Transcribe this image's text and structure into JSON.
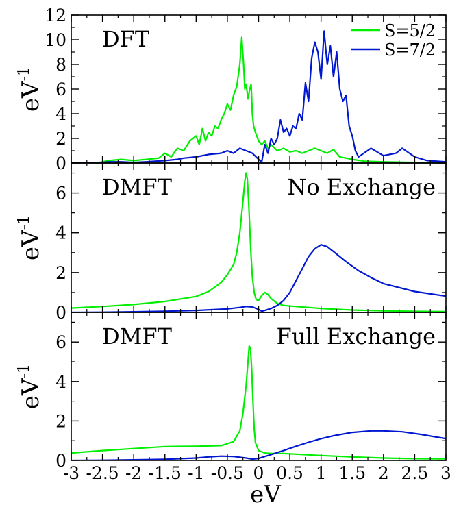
{
  "colors": {
    "s52": "#00ee00",
    "s72": "#0018d0"
  },
  "chart_data": {
    "type": "line",
    "xlabel": "eV",
    "xlim": [
      -3,
      3
    ],
    "xticks": [
      "-3",
      "-2.5",
      "-2",
      "-1.5",
      "-1",
      "-0.5",
      "0",
      "0.5",
      "1",
      "1.5",
      "2",
      "2.5",
      "3"
    ],
    "legend": {
      "placement": "top-right",
      "entries": [
        "S=5/2",
        "S=7/2"
      ]
    },
    "panels": [
      {
        "label": "DFT",
        "label2": "",
        "ylabel": "eV",
        "ylabel_sup": "-1",
        "ylim": [
          0,
          12
        ],
        "yticks": [
          "0",
          "2",
          "4",
          "6",
          "8",
          "10",
          "12"
        ],
        "series": [
          {
            "name": "S=5/2",
            "color": "#00ee00",
            "x": [
              -3.0,
              -2.6,
              -2.4,
              -2.2,
              -2.0,
              -1.8,
              -1.6,
              -1.5,
              -1.4,
              -1.3,
              -1.2,
              -1.1,
              -1.0,
              -0.95,
              -0.9,
              -0.85,
              -0.8,
              -0.75,
              -0.7,
              -0.65,
              -0.6,
              -0.55,
              -0.5,
              -0.45,
              -0.4,
              -0.35,
              -0.3,
              -0.27,
              -0.24,
              -0.22,
              -0.2,
              -0.17,
              -0.14,
              -0.12,
              -0.1,
              -0.08,
              -0.05,
              0.0,
              0.05,
              0.1,
              0.15,
              0.2,
              0.3,
              0.4,
              0.5,
              0.6,
              0.7,
              0.8,
              0.9,
              1.0,
              1.1,
              1.2,
              1.3,
              1.5,
              1.7,
              2.0,
              2.5,
              3.0
            ],
            "y": [
              0,
              0,
              0.2,
              0.3,
              0.2,
              0.3,
              0.4,
              0.8,
              0.5,
              1.2,
              1.0,
              1.8,
              2.2,
              1.5,
              2.8,
              1.8,
              2.5,
              2.2,
              3.0,
              2.8,
              3.5,
              4.0,
              4.8,
              4.3,
              5.5,
              6.2,
              8.0,
              10.2,
              8.0,
              6.0,
              6.4,
              5.2,
              6.0,
              6.4,
              4.0,
              3.0,
              2.5,
              1.8,
              1.5,
              1.8,
              1.2,
              1.5,
              1.0,
              1.2,
              0.9,
              1.0,
              0.8,
              1.0,
              1.2,
              1.0,
              0.8,
              1.1,
              0.5,
              0.3,
              0.15,
              0.1,
              0.05,
              0.05
            ]
          },
          {
            "name": "S=7/2",
            "color": "#0018d0",
            "x": [
              -3.0,
              -2.6,
              -2.4,
              -2.2,
              -2.0,
              -1.8,
              -1.5,
              -1.3,
              -1.2,
              -1.0,
              -0.8,
              -0.6,
              -0.5,
              -0.4,
              -0.3,
              -0.2,
              -0.1,
              0.0,
              0.05,
              0.1,
              0.15,
              0.2,
              0.25,
              0.3,
              0.35,
              0.4,
              0.45,
              0.5,
              0.55,
              0.6,
              0.65,
              0.7,
              0.75,
              0.8,
              0.85,
              0.9,
              0.95,
              1.0,
              1.05,
              1.08,
              1.1,
              1.15,
              1.2,
              1.25,
              1.3,
              1.35,
              1.4,
              1.45,
              1.5,
              1.55,
              1.6,
              1.8,
              2.0,
              2.2,
              2.3,
              2.5,
              2.7,
              3.0
            ],
            "y": [
              0,
              0,
              0.1,
              0.1,
              0.05,
              0.1,
              0.2,
              0.3,
              0.4,
              0.5,
              0.7,
              0.8,
              1.0,
              0.8,
              1.2,
              1.0,
              0.8,
              0.3,
              0.1,
              1.5,
              0.8,
              2.0,
              1.5,
              2.0,
              3.5,
              2.5,
              2.8,
              2.2,
              3.0,
              2.8,
              4.0,
              3.5,
              6.5,
              5.0,
              8.5,
              9.8,
              9.0,
              6.8,
              10.7,
              9.0,
              8.0,
              9.5,
              7.0,
              9.0,
              6.0,
              5.0,
              5.5,
              3.0,
              2.2,
              1.0,
              0.5,
              1.2,
              0.6,
              0.8,
              1.2,
              0.5,
              0.2,
              0.1
            ]
          }
        ]
      },
      {
        "label": "DMFT",
        "label2": "No Exchange",
        "ylabel": "eV",
        "ylabel_sup": "-1",
        "ylim": [
          0,
          7.5
        ],
        "yticks": [
          "0",
          "2",
          "4",
          "6"
        ],
        "series": [
          {
            "name": "S=5/2",
            "color": "#00ee00",
            "x": [
              -3.0,
              -2.5,
              -2.0,
              -1.5,
              -1.0,
              -0.8,
              -0.6,
              -0.5,
              -0.4,
              -0.35,
              -0.3,
              -0.25,
              -0.22,
              -0.2,
              -0.18,
              -0.16,
              -0.14,
              -0.12,
              -0.1,
              -0.07,
              -0.04,
              0.0,
              0.05,
              0.1,
              0.15,
              0.2,
              0.3,
              0.4,
              0.6,
              0.8,
              1.0,
              1.5,
              2.0,
              2.5,
              3.0
            ],
            "y": [
              0.22,
              0.3,
              0.4,
              0.55,
              0.8,
              1.05,
              1.5,
              1.9,
              2.4,
              3.0,
              4.0,
              5.6,
              6.6,
              7.0,
              6.7,
              5.6,
              4.2,
              2.8,
              1.8,
              1.0,
              0.65,
              0.6,
              0.85,
              1.0,
              0.9,
              0.7,
              0.45,
              0.35,
              0.3,
              0.25,
              0.2,
              0.12,
              0.08,
              0.05,
              0.04
            ]
          },
          {
            "name": "S=7/2",
            "color": "#0018d0",
            "x": [
              -3.0,
              -2.5,
              -2.0,
              -1.5,
              -1.0,
              -0.5,
              -0.3,
              -0.2,
              -0.1,
              0.0,
              0.05,
              0.1,
              0.2,
              0.3,
              0.4,
              0.5,
              0.6,
              0.7,
              0.8,
              0.9,
              1.0,
              1.1,
              1.2,
              1.4,
              1.6,
              1.8,
              2.0,
              2.5,
              3.0
            ],
            "y": [
              0.0,
              0.01,
              0.03,
              0.06,
              0.1,
              0.18,
              0.25,
              0.3,
              0.28,
              0.15,
              0.06,
              0.1,
              0.2,
              0.35,
              0.6,
              1.0,
              1.6,
              2.2,
              2.8,
              3.2,
              3.4,
              3.3,
              3.05,
              2.55,
              2.1,
              1.75,
              1.45,
              1.05,
              0.82
            ]
          }
        ]
      },
      {
        "label": "DMFT",
        "label2": "Full Exchange",
        "ylabel": "eV",
        "ylabel_sup": "-1",
        "ylim": [
          0,
          7.5
        ],
        "yticks": [
          "0",
          "2",
          "4",
          "6"
        ],
        "series": [
          {
            "name": "S=5/2",
            "color": "#00ee00",
            "x": [
              -3.0,
              -2.5,
              -2.0,
              -1.5,
              -1.0,
              -0.6,
              -0.4,
              -0.3,
              -0.25,
              -0.2,
              -0.17,
              -0.15,
              -0.13,
              -0.11,
              -0.09,
              -0.07,
              -0.05,
              0.0,
              0.1,
              0.2,
              0.4,
              0.6,
              1.0,
              1.5,
              2.0,
              2.5,
              3.0
            ],
            "y": [
              0.38,
              0.5,
              0.6,
              0.7,
              0.72,
              0.75,
              0.95,
              1.5,
              2.4,
              3.8,
              5.0,
              5.8,
              5.7,
              4.6,
              3.0,
              1.6,
              0.9,
              0.5,
              0.38,
              0.35,
              0.35,
              0.32,
              0.25,
              0.18,
              0.12,
              0.09,
              0.08
            ]
          },
          {
            "name": "S=7/2",
            "color": "#0018d0",
            "x": [
              -3.0,
              -2.5,
              -2.0,
              -1.5,
              -1.0,
              -0.8,
              -0.6,
              -0.4,
              -0.2,
              -0.1,
              0.0,
              0.1,
              0.2,
              0.4,
              0.6,
              0.8,
              1.0,
              1.2,
              1.5,
              1.8,
              2.0,
              2.3,
              2.6,
              3.0
            ],
            "y": [
              0.0,
              0.01,
              0.03,
              0.06,
              0.12,
              0.18,
              0.22,
              0.2,
              0.12,
              0.07,
              0.1,
              0.2,
              0.3,
              0.5,
              0.72,
              0.92,
              1.1,
              1.25,
              1.42,
              1.5,
              1.5,
              1.45,
              1.32,
              1.1
            ]
          }
        ]
      }
    ]
  }
}
